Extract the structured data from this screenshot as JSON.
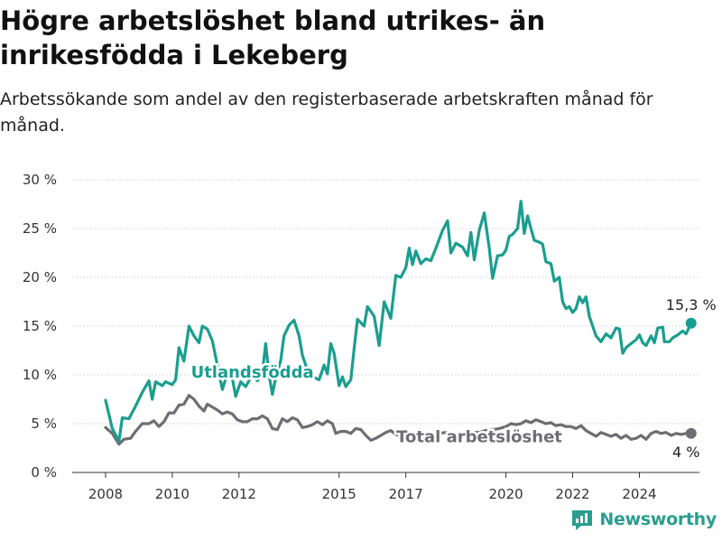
{
  "title": "Högre arbetslöshet bland utrikes- än inrikesfödda i Lekeberg",
  "subtitle": "Arbetssökande som andel av den registerbaserade arbetskraften månad för månad.",
  "brand": "Newsworthy",
  "colors": {
    "foreign": "#1a9e8f",
    "total": "#6f6d74",
    "grid": "#d9d9d9",
    "axis": "#333333"
  },
  "chart_data": {
    "type": "line",
    "x_ticks": [
      "2008",
      "2010",
      "2012",
      "2015",
      "2017",
      "2020",
      "2022",
      "2024"
    ],
    "y_ticks": [
      "0 %",
      "5 %",
      "10 %",
      "15 %",
      "20 %",
      "25 %",
      "30 %"
    ],
    "ylim": [
      0,
      30
    ],
    "xlim": [
      2007.0,
      2025.8
    ],
    "grid": true,
    "series": [
      {
        "name": "Utlandsfödda",
        "end_label": "15,3 %",
        "points": [
          [
            2008.0,
            7.4
          ],
          [
            2008.2,
            4.5
          ],
          [
            2008.4,
            3.2
          ],
          [
            2008.5,
            5.6
          ],
          [
            2008.7,
            5.5
          ],
          [
            2008.9,
            6.8
          ],
          [
            2009.1,
            8.2
          ],
          [
            2009.3,
            9.4
          ],
          [
            2009.4,
            7.5
          ],
          [
            2009.5,
            9.3
          ],
          [
            2009.7,
            8.9
          ],
          [
            2009.8,
            9.3
          ],
          [
            2010.0,
            9.0
          ],
          [
            2010.1,
            9.5
          ],
          [
            2010.2,
            12.8
          ],
          [
            2010.35,
            11.4
          ],
          [
            2010.5,
            15.0
          ],
          [
            2010.65,
            14.0
          ],
          [
            2010.8,
            13.3
          ],
          [
            2010.9,
            15.0
          ],
          [
            2011.05,
            14.7
          ],
          [
            2011.2,
            13.5
          ],
          [
            2011.35,
            11.0
          ],
          [
            2011.5,
            8.5
          ],
          [
            2011.6,
            9.6
          ],
          [
            2011.75,
            10.6
          ],
          [
            2011.9,
            7.8
          ],
          [
            2012.05,
            9.3
          ],
          [
            2012.2,
            8.8
          ],
          [
            2012.4,
            10.0
          ],
          [
            2012.55,
            9.4
          ],
          [
            2012.7,
            10.2
          ],
          [
            2012.8,
            13.2
          ],
          [
            2012.9,
            10.0
          ],
          [
            2013.0,
            8.0
          ],
          [
            2013.1,
            9.7
          ],
          [
            2013.25,
            11.5
          ],
          [
            2013.35,
            14.0
          ],
          [
            2013.5,
            15.1
          ],
          [
            2013.65,
            15.6
          ],
          [
            2013.8,
            14.0
          ],
          [
            2013.9,
            12.0
          ],
          [
            2014.05,
            10.5
          ],
          [
            2014.2,
            9.8
          ],
          [
            2014.4,
            9.5
          ],
          [
            2014.55,
            11.0
          ],
          [
            2014.65,
            10.1
          ],
          [
            2014.75,
            13.2
          ],
          [
            2014.85,
            12.2
          ],
          [
            2015.0,
            8.9
          ],
          [
            2015.1,
            9.8
          ],
          [
            2015.2,
            8.8
          ],
          [
            2015.35,
            9.5
          ],
          [
            2015.45,
            12.7
          ],
          [
            2015.55,
            15.7
          ],
          [
            2015.75,
            15.0
          ],
          [
            2015.85,
            17.0
          ],
          [
            2016.05,
            16.0
          ],
          [
            2016.2,
            13.0
          ],
          [
            2016.35,
            17.5
          ],
          [
            2016.55,
            15.8
          ],
          [
            2016.7,
            20.2
          ],
          [
            2016.85,
            20.0
          ],
          [
            2017.0,
            21.0
          ],
          [
            2017.1,
            23.0
          ],
          [
            2017.2,
            21.3
          ],
          [
            2017.3,
            22.7
          ],
          [
            2017.45,
            21.4
          ],
          [
            2017.6,
            21.9
          ],
          [
            2017.75,
            21.7
          ],
          [
            2017.9,
            23.0
          ],
          [
            2018.1,
            24.8
          ],
          [
            2018.25,
            25.8
          ],
          [
            2018.35,
            22.5
          ],
          [
            2018.5,
            23.5
          ],
          [
            2018.7,
            23.1
          ],
          [
            2018.85,
            22.2
          ],
          [
            2018.95,
            24.6
          ],
          [
            2019.05,
            21.8
          ],
          [
            2019.2,
            24.8
          ],
          [
            2019.35,
            26.6
          ],
          [
            2019.5,
            23.0
          ],
          [
            2019.6,
            19.9
          ],
          [
            2019.75,
            22.2
          ],
          [
            2019.9,
            22.3
          ],
          [
            2020.0,
            22.8
          ],
          [
            2020.1,
            24.2
          ],
          [
            2020.2,
            24.4
          ],
          [
            2020.35,
            25.0
          ],
          [
            2020.45,
            27.8
          ],
          [
            2020.55,
            24.5
          ],
          [
            2020.65,
            26.3
          ],
          [
            2020.75,
            25.0
          ],
          [
            2020.85,
            23.8
          ],
          [
            2021.0,
            23.6
          ],
          [
            2021.1,
            23.4
          ],
          [
            2021.2,
            21.6
          ],
          [
            2021.35,
            21.4
          ],
          [
            2021.45,
            19.6
          ],
          [
            2021.6,
            20.0
          ],
          [
            2021.7,
            17.5
          ],
          [
            2021.8,
            16.8
          ],
          [
            2021.9,
            17.0
          ],
          [
            2022.0,
            16.4
          ],
          [
            2022.1,
            16.8
          ],
          [
            2022.2,
            18.0
          ],
          [
            2022.3,
            17.4
          ],
          [
            2022.4,
            18.0
          ],
          [
            2022.5,
            16.0
          ],
          [
            2022.6,
            15.0
          ],
          [
            2022.7,
            14.0
          ],
          [
            2022.85,
            13.4
          ],
          [
            2023.0,
            14.2
          ],
          [
            2023.15,
            13.8
          ],
          [
            2023.3,
            14.8
          ],
          [
            2023.4,
            14.7
          ],
          [
            2023.5,
            12.2
          ],
          [
            2023.6,
            12.8
          ],
          [
            2023.75,
            13.2
          ],
          [
            2023.9,
            13.6
          ],
          [
            2024.0,
            14.1
          ],
          [
            2024.1,
            13.3
          ],
          [
            2024.2,
            13.0
          ],
          [
            2024.35,
            14.0
          ],
          [
            2024.45,
            13.3
          ],
          [
            2024.55,
            14.8
          ],
          [
            2024.7,
            14.9
          ],
          [
            2024.75,
            13.4
          ],
          [
            2024.9,
            13.4
          ],
          [
            2025.0,
            13.8
          ],
          [
            2025.15,
            14.1
          ],
          [
            2025.3,
            14.5
          ],
          [
            2025.4,
            14.2
          ],
          [
            2025.55,
            15.3
          ]
        ]
      },
      {
        "name": "Total arbetslöshet",
        "end_label": "4 %",
        "points": [
          [
            2008.0,
            4.6
          ],
          [
            2008.2,
            4.0
          ],
          [
            2008.4,
            2.9
          ],
          [
            2008.55,
            3.4
          ],
          [
            2008.75,
            3.5
          ],
          [
            2008.9,
            4.2
          ],
          [
            2009.1,
            5.0
          ],
          [
            2009.3,
            5.0
          ],
          [
            2009.45,
            5.3
          ],
          [
            2009.6,
            4.7
          ],
          [
            2009.75,
            5.2
          ],
          [
            2009.9,
            6.1
          ],
          [
            2010.05,
            6.1
          ],
          [
            2010.2,
            6.9
          ],
          [
            2010.35,
            7.0
          ],
          [
            2010.5,
            7.9
          ],
          [
            2010.65,
            7.5
          ],
          [
            2010.8,
            6.8
          ],
          [
            2010.95,
            6.3
          ],
          [
            2011.05,
            7.0
          ],
          [
            2011.2,
            6.7
          ],
          [
            2011.35,
            6.4
          ],
          [
            2011.5,
            6.0
          ],
          [
            2011.65,
            6.2
          ],
          [
            2011.8,
            6.0
          ],
          [
            2011.95,
            5.4
          ],
          [
            2012.1,
            5.2
          ],
          [
            2012.25,
            5.2
          ],
          [
            2012.4,
            5.5
          ],
          [
            2012.55,
            5.5
          ],
          [
            2012.7,
            5.8
          ],
          [
            2012.85,
            5.5
          ],
          [
            2013.0,
            4.5
          ],
          [
            2013.15,
            4.4
          ],
          [
            2013.3,
            5.5
          ],
          [
            2013.45,
            5.2
          ],
          [
            2013.6,
            5.6
          ],
          [
            2013.75,
            5.4
          ],
          [
            2013.9,
            4.6
          ],
          [
            2014.05,
            4.7
          ],
          [
            2014.2,
            4.9
          ],
          [
            2014.35,
            5.2
          ],
          [
            2014.5,
            4.9
          ],
          [
            2014.65,
            5.3
          ],
          [
            2014.8,
            5.0
          ],
          [
            2014.9,
            4.0
          ],
          [
            2015.05,
            4.2
          ],
          [
            2015.2,
            4.2
          ],
          [
            2015.35,
            4.0
          ],
          [
            2015.5,
            4.5
          ],
          [
            2015.65,
            4.4
          ],
          [
            2015.8,
            3.8
          ],
          [
            2015.95,
            3.3
          ],
          [
            2016.1,
            3.5
          ],
          [
            2016.25,
            3.8
          ],
          [
            2016.4,
            4.1
          ],
          [
            2016.55,
            4.3
          ],
          [
            2016.7,
            3.9
          ],
          [
            2016.85,
            3.7
          ],
          [
            2017.0,
            3.9
          ],
          [
            2017.2,
            4.0
          ],
          [
            2017.4,
            4.0
          ],
          [
            2017.6,
            3.9
          ],
          [
            2017.8,
            4.0
          ],
          [
            2018.0,
            4.0
          ],
          [
            2018.2,
            4.1
          ],
          [
            2018.4,
            4.0
          ],
          [
            2018.6,
            4.0
          ],
          [
            2018.8,
            4.0
          ],
          [
            2019.0,
            4.1
          ],
          [
            2019.2,
            4.1
          ],
          [
            2019.4,
            4.3
          ],
          [
            2019.6,
            4.4
          ],
          [
            2019.8,
            4.5
          ],
          [
            2020.0,
            4.7
          ],
          [
            2020.15,
            5.0
          ],
          [
            2020.3,
            4.9
          ],
          [
            2020.45,
            5.0
          ],
          [
            2020.6,
            5.3
          ],
          [
            2020.75,
            5.1
          ],
          [
            2020.9,
            5.4
          ],
          [
            2021.05,
            5.2
          ],
          [
            2021.2,
            5.0
          ],
          [
            2021.35,
            5.1
          ],
          [
            2021.5,
            4.8
          ],
          [
            2021.65,
            4.9
          ],
          [
            2021.8,
            4.7
          ],
          [
            2021.95,
            4.7
          ],
          [
            2022.1,
            4.5
          ],
          [
            2022.25,
            4.8
          ],
          [
            2022.4,
            4.3
          ],
          [
            2022.55,
            4.0
          ],
          [
            2022.7,
            3.7
          ],
          [
            2022.85,
            4.1
          ],
          [
            2023.0,
            3.9
          ],
          [
            2023.15,
            3.7
          ],
          [
            2023.3,
            3.9
          ],
          [
            2023.45,
            3.5
          ],
          [
            2023.6,
            3.8
          ],
          [
            2023.75,
            3.4
          ],
          [
            2023.9,
            3.5
          ],
          [
            2024.05,
            3.8
          ],
          [
            2024.2,
            3.4
          ],
          [
            2024.35,
            4.0
          ],
          [
            2024.5,
            4.2
          ],
          [
            2024.65,
            4.0
          ],
          [
            2024.8,
            4.1
          ],
          [
            2024.95,
            3.8
          ],
          [
            2025.1,
            4.0
          ],
          [
            2025.25,
            3.9
          ],
          [
            2025.4,
            4.0
          ],
          [
            2025.55,
            4.0
          ]
        ]
      }
    ]
  }
}
